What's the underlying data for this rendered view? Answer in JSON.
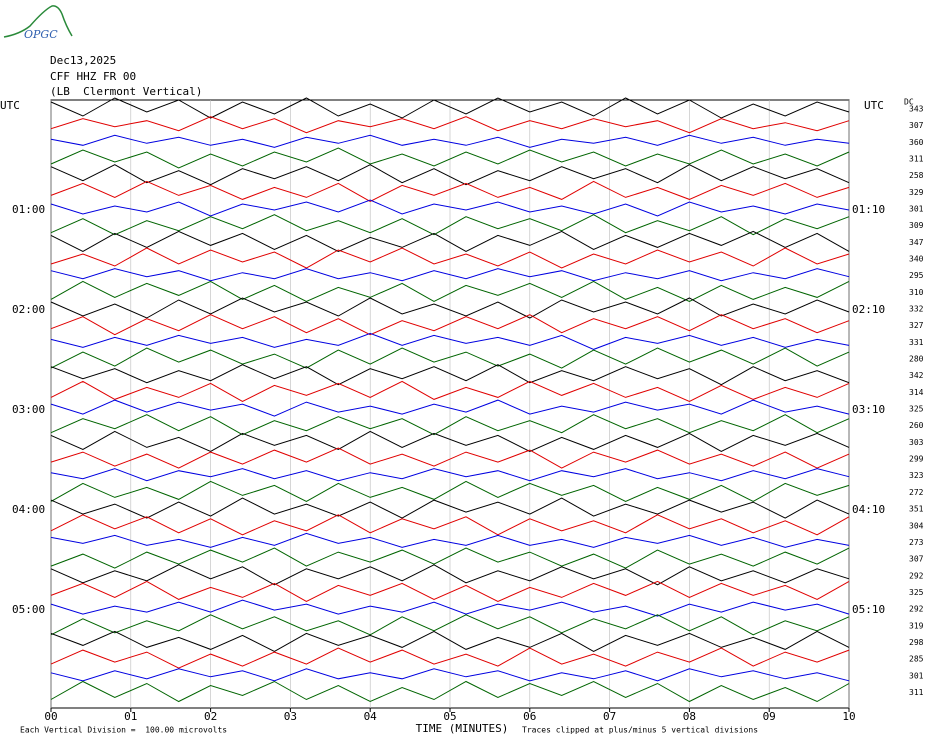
{
  "logo": "OPGC",
  "chart_data": {
    "type": "helicorder",
    "date": "Dec13,2025",
    "station": "CFF HHZ FR 00",
    "location": "(LB  Clermont Vertical)",
    "left_header": "UTC",
    "right_header": "UTC",
    "dc_header": "DC",
    "xlabel": "TIME (MINUTES)",
    "scale_note": "Each Vertical Division =  100.00 microvolts",
    "clip_note": "Traces clipped at plus/minus 5 vertical divisions",
    "xlim": [
      0,
      10
    ],
    "xticks": [
      {
        "value": 0,
        "label": "00"
      },
      {
        "value": 1,
        "label": "01"
      },
      {
        "value": 2,
        "label": "02"
      },
      {
        "value": 3,
        "label": "03"
      },
      {
        "value": 4,
        "label": "04"
      },
      {
        "value": 5,
        "label": "05"
      },
      {
        "value": 6,
        "label": "06"
      },
      {
        "value": 7,
        "label": "07"
      },
      {
        "value": 8,
        "label": "08"
      },
      {
        "value": 9,
        "label": "09"
      },
      {
        "value": 10,
        "label": "10"
      }
    ],
    "grid": true,
    "colors": [
      "#000000",
      "#e00000",
      "#0000e0",
      "#006400"
    ],
    "left_labels": [
      null,
      null,
      null,
      null,
      null,
      null,
      "01:00",
      null,
      null,
      null,
      null,
      null,
      "02:00",
      null,
      null,
      null,
      null,
      null,
      "03:00",
      null,
      null,
      null,
      null,
      null,
      "04:00",
      null,
      null,
      null,
      null,
      null,
      "05:00",
      null,
      null,
      null,
      null,
      null
    ],
    "right_labels": [
      null,
      null,
      null,
      null,
      null,
      null,
      "01:10",
      null,
      null,
      null,
      null,
      null,
      "02:10",
      null,
      null,
      null,
      null,
      null,
      "03:10",
      null,
      null,
      null,
      null,
      null,
      "04:10",
      null,
      null,
      null,
      null,
      null,
      "05:10",
      null,
      null,
      null,
      null,
      null
    ],
    "dc": [
      343,
      307,
      360,
      311,
      258,
      329,
      301,
      309,
      347,
      340,
      295,
      310,
      332,
      327,
      331,
      280,
      342,
      314,
      325,
      260,
      303,
      299,
      323,
      272,
      351,
      304,
      273,
      307,
      292,
      325,
      292,
      319,
      298,
      285,
      301,
      311
    ],
    "x": [
      0,
      0.4,
      0.8,
      1.2,
      1.6,
      2,
      2.4,
      2.8,
      3.2,
      3.6,
      4,
      4.4,
      4.8,
      5.2,
      5.6,
      6,
      6.4,
      6.8,
      7.2,
      7.6,
      8,
      8.4,
      8.8,
      9.2,
      9.6,
      10
    ],
    "traces": [
      {
        "values": [
          3,
          -4,
          5,
          -2,
          4,
          -5,
          3,
          -3,
          5,
          -4,
          2,
          -5,
          4,
          -3,
          5,
          -2,
          3,
          -4,
          5,
          -3,
          4,
          -5,
          2,
          -4,
          3,
          -2
        ]
      },
      {
        "values": [
          -2,
          3,
          -1,
          2,
          -3,
          4,
          -2,
          3,
          -4,
          2,
          -1,
          3,
          -2,
          4,
          -3,
          2,
          -2,
          3,
          -1,
          2,
          -4,
          3,
          -2,
          1,
          -3,
          2
        ]
      },
      {
        "values": [
          1,
          -2,
          3,
          -1,
          2,
          -2,
          1,
          -3,
          2,
          -1,
          3,
          -2,
          1,
          -2,
          2,
          -3,
          1,
          -1,
          2,
          -2,
          3,
          -1,
          2,
          -2,
          1,
          -1
        ]
      },
      {
        "values": [
          -3,
          4,
          -2,
          3,
          -5,
          2,
          -4,
          3,
          -2,
          5,
          -3,
          2,
          -4,
          3,
          -3,
          4,
          -2,
          3,
          -4,
          2,
          -3,
          4,
          -3,
          2,
          -4,
          3
        ]
      },
      {
        "values": [
          4,
          -3,
          5,
          -4,
          2,
          -5,
          3,
          -2,
          4,
          -3,
          5,
          -4,
          3,
          -5,
          2,
          -3,
          4,
          -2,
          3,
          -4,
          5,
          -3,
          4,
          -2,
          3,
          -4
        ]
      },
      {
        "values": [
          -2,
          4,
          -3,
          5,
          -2,
          3,
          -4,
          2,
          -3,
          4,
          -5,
          3,
          -2,
          4,
          -3,
          2,
          -4,
          5,
          -3,
          2,
          -4,
          3,
          -2,
          4,
          -3,
          2
        ]
      },
      {
        "values": [
          2,
          -3,
          1,
          -2,
          3,
          -4,
          2,
          -1,
          3,
          -2,
          4,
          -3,
          2,
          -1,
          3,
          -2,
          1,
          -3,
          2,
          -4,
          3,
          -2,
          1,
          -3,
          2,
          -1
        ]
      },
      {
        "values": [
          -4,
          3,
          -5,
          2,
          -3,
          4,
          -2,
          5,
          -3,
          2,
          -4,
          3,
          -5,
          4,
          -2,
          3,
          -3,
          5,
          -4,
          2,
          -3,
          4,
          -5,
          3,
          -2,
          4
        ]
      },
      {
        "values": [
          3,
          -5,
          4,
          -3,
          5,
          -2,
          4,
          -4,
          3,
          -5,
          2,
          -3,
          4,
          -5,
          3,
          -2,
          5,
          -4,
          3,
          -3,
          4,
          -2,
          5,
          -3,
          4,
          -5
        ]
      },
      {
        "values": [
          -3,
          2,
          -4,
          5,
          -3,
          4,
          -2,
          3,
          -5,
          4,
          -2,
          5,
          -3,
          2,
          -4,
          3,
          -5,
          2,
          -3,
          4,
          -2,
          3,
          -4,
          5,
          -3,
          2
        ]
      },
      {
        "values": [
          2,
          -2,
          3,
          -1,
          2,
          -3,
          1,
          -2,
          3,
          -2,
          1,
          -3,
          2,
          -2,
          3,
          -1,
          2,
          -3,
          1,
          -2,
          2,
          -3,
          1,
          -2,
          3,
          -1
        ]
      },
      {
        "values": [
          -4,
          5,
          -3,
          4,
          -2,
          5,
          -4,
          3,
          -5,
          2,
          -3,
          4,
          -5,
          3,
          -2,
          4,
          -3,
          5,
          -4,
          2,
          -5,
          3,
          -4,
          2,
          -3,
          5
        ]
      },
      {
        "values": [
          3,
          -4,
          2,
          -5,
          4,
          -3,
          5,
          -2,
          3,
          -4,
          5,
          -3,
          2,
          -4,
          3,
          -5,
          4,
          -2,
          3,
          -3,
          5,
          -4,
          2,
          -3,
          4,
          -2
        ]
      },
      {
        "values": [
          -2,
          4,
          -5,
          3,
          -3,
          5,
          -2,
          4,
          -4,
          3,
          -5,
          2,
          -3,
          4,
          -2,
          5,
          -4,
          3,
          -2,
          4,
          -3,
          5,
          -2,
          3,
          -4,
          2
        ]
      },
      {
        "values": [
          1,
          -3,
          2,
          -2,
          3,
          -1,
          2,
          -3,
          1,
          -2,
          4,
          -2,
          3,
          -1,
          2,
          -2,
          3,
          -4,
          2,
          -1,
          3,
          -2,
          2,
          -3,
          1,
          -2
        ]
      },
      {
        "values": [
          -5,
          3,
          -4,
          5,
          -2,
          4,
          -3,
          2,
          -5,
          4,
          -3,
          5,
          -2,
          3,
          -4,
          2,
          -5,
          4,
          -3,
          5,
          -2,
          4,
          -3,
          5,
          -4,
          3
        ]
      },
      {
        "values": [
          4,
          -2,
          3,
          -4,
          2,
          -3,
          5,
          -2,
          4,
          -5,
          3,
          -2,
          4,
          -3,
          5,
          -4,
          2,
          -3,
          4,
          -2,
          3,
          -5,
          4,
          -3,
          2,
          -4
        ]
      },
      {
        "values": [
          -3,
          5,
          -4,
          2,
          -3,
          4,
          -5,
          3,
          -2,
          4,
          -3,
          5,
          -4,
          2,
          -3,
          5,
          -2,
          4,
          -3,
          2,
          -5,
          3,
          -4,
          2,
          -3,
          4
        ]
      },
      {
        "values": [
          2,
          -3,
          4,
          -2,
          3,
          -1,
          2,
          -4,
          3,
          -2,
          1,
          -3,
          2,
          -2,
          4,
          -3,
          1,
          -2,
          3,
          -1,
          2,
          -3,
          4,
          -2,
          1,
          -3
        ]
      },
      {
        "values": [
          -4,
          3,
          -2,
          5,
          -3,
          4,
          -5,
          2,
          -3,
          4,
          -2,
          3,
          -5,
          4,
          -3,
          2,
          -4,
          5,
          -2,
          3,
          -4,
          2,
          -3,
          5,
          -4,
          3
        ]
      },
      {
        "values": [
          3,
          -4,
          5,
          -3,
          2,
          -5,
          4,
          -2,
          3,
          -4,
          5,
          -3,
          4,
          -2,
          3,
          -5,
          2,
          -4,
          3,
          -3,
          4,
          -5,
          3,
          -2,
          4,
          -3
        ]
      },
      {
        "values": [
          -2,
          3,
          -4,
          2,
          -5,
          3,
          -3,
          4,
          -2,
          5,
          -3,
          2,
          -4,
          3,
          -2,
          4,
          -5,
          3,
          -2,
          4,
          -3,
          2,
          -4,
          3,
          -5,
          2
        ]
      },
      {
        "values": [
          1,
          -2,
          3,
          -3,
          2,
          -1,
          3,
          -2,
          2,
          -3,
          1,
          -2,
          3,
          -1,
          2,
          -3,
          2,
          -1,
          3,
          -2,
          1,
          -3,
          2,
          -2,
          3,
          -1
        ]
      },
      {
        "values": [
          -5,
          4,
          -3,
          2,
          -4,
          5,
          -2,
          3,
          -5,
          4,
          -3,
          2,
          -4,
          5,
          -3,
          4,
          -2,
          3,
          -5,
          2,
          -4,
          3,
          -5,
          4,
          -2,
          3
        ]
      },
      {
        "values": [
          4,
          -3,
          2,
          -5,
          3,
          -4,
          5,
          -3,
          2,
          -4,
          3,
          -5,
          4,
          -2,
          3,
          -3,
          5,
          -4,
          2,
          -3,
          4,
          -2,
          3,
          -5,
          4,
          -3
        ]
      },
      {
        "values": [
          -3,
          5,
          -2,
          4,
          -4,
          3,
          -5,
          2,
          -3,
          5,
          -4,
          3,
          -2,
          4,
          -5,
          3,
          -3,
          2,
          -4,
          5,
          -2,
          3,
          -4,
          2,
          -5,
          4
        ]
      },
      {
        "values": [
          2,
          -1,
          3,
          -2,
          1,
          -3,
          2,
          -2,
          4,
          -1,
          2,
          -3,
          1,
          -2,
          3,
          -2,
          1,
          -3,
          2,
          -1,
          3,
          -2,
          2,
          -3,
          1,
          -2
        ]
      },
      {
        "values": [
          -4,
          2,
          -5,
          3,
          -3,
          4,
          -2,
          5,
          -4,
          3,
          -2,
          4,
          -3,
          5,
          -2,
          3,
          -4,
          2,
          -5,
          4,
          -3,
          2,
          -4,
          3,
          -3,
          5
        ]
      },
      {
        "values": [
          3,
          -4,
          2,
          -3,
          5,
          -2,
          4,
          -5,
          3,
          -2,
          4,
          -3,
          5,
          -4,
          2,
          -3,
          4,
          -2,
          3,
          -5,
          4,
          -3,
          2,
          -4,
          3,
          -2
        ]
      },
      {
        "values": [
          -2,
          4,
          -3,
          5,
          -4,
          2,
          -3,
          4,
          -5,
          3,
          -2,
          4,
          -4,
          3,
          -5,
          2,
          -3,
          4,
          -2,
          5,
          -3,
          4,
          -2,
          3,
          -4,
          5
        ]
      },
      {
        "values": [
          2,
          -3,
          1,
          -2,
          3,
          -2,
          4,
          -1,
          2,
          -3,
          1,
          -2,
          3,
          -3,
          2,
          -1,
          3,
          -2,
          1,
          -4,
          2,
          -2,
          3,
          -1,
          2,
          -3
        ]
      },
      {
        "values": [
          -5,
          3,
          -4,
          2,
          -3,
          5,
          -2,
          4,
          -3,
          2,
          -5,
          4,
          -3,
          5,
          -2,
          4,
          -4,
          3,
          -2,
          5,
          -3,
          4,
          -5,
          2,
          -3,
          4
        ]
      },
      {
        "values": [
          4,
          -2,
          5,
          -3,
          2,
          -4,
          3,
          -5,
          4,
          -2,
          3,
          -3,
          5,
          -4,
          2,
          -3,
          4,
          -5,
          3,
          -2,
          4,
          -3,
          2,
          -4,
          5,
          -3
        ]
      },
      {
        "values": [
          -3,
          4,
          -2,
          3,
          -5,
          2,
          -4,
          3,
          -3,
          5,
          -2,
          4,
          -3,
          2,
          -4,
          5,
          -3,
          2,
          -4,
          3,
          -2,
          5,
          -4,
          3,
          -2,
          4
        ]
      },
      {
        "values": [
          1,
          -3,
          2,
          -2,
          3,
          -1,
          2,
          -3,
          3,
          -2,
          1,
          -2,
          3,
          -1,
          2,
          -3,
          1,
          -2,
          2,
          -3,
          3,
          -1,
          2,
          -2,
          1,
          -3
        ]
      },
      {
        "values": [
          -4,
          5,
          -3,
          4,
          -5,
          3,
          -2,
          5,
          -4,
          3,
          -5,
          2,
          -4,
          5,
          -3,
          4,
          -2,
          5,
          -3,
          4,
          -5,
          3,
          -4,
          2,
          -5,
          4
        ]
      }
    ]
  }
}
